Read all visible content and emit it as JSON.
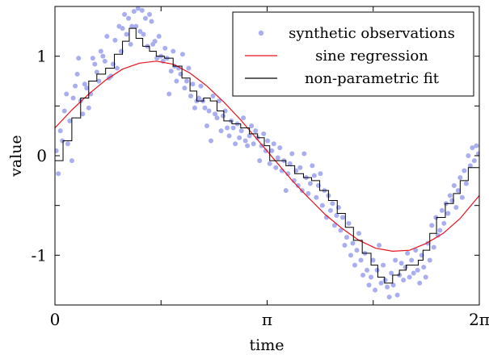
{
  "chart_data": {
    "type": "scatter",
    "xlabel": "time",
    "ylabel": "value",
    "xlim": [
      0,
      6.2832
    ],
    "ylim": [
      -1.5,
      1.5
    ],
    "x_ticks": [
      {
        "value": 0,
        "label": "0"
      },
      {
        "value": 3.1416,
        "label": "π"
      },
      {
        "value": 6.2832,
        "label": "2π"
      }
    ],
    "x_minor_ticks": [
      1.5708,
      4.7124
    ],
    "y_ticks": [
      {
        "value": -1,
        "label": "-1"
      },
      {
        "value": 0,
        "label": "0"
      },
      {
        "value": 1,
        "label": "1"
      }
    ],
    "y_minor_ticks": [
      -0.5,
      0.5
    ],
    "grid": false,
    "legend_position": "top-right",
    "colors": {
      "observations": "#a8aef0",
      "sine": "#e8111b",
      "fit": "#000000"
    },
    "series": [
      {
        "name": "synthetic observations",
        "kind": "scatter",
        "points": [
          [
            0.02,
            0.05
          ],
          [
            0.05,
            -0.18
          ],
          [
            0.08,
            0.25
          ],
          [
            0.11,
            0.15
          ],
          [
            0.14,
            0.45
          ],
          [
            0.17,
            0.62
          ],
          [
            0.19,
            0.12
          ],
          [
            0.22,
            0.35
          ],
          [
            0.25,
            -0.05
          ],
          [
            0.27,
            0.58
          ],
          [
            0.3,
            0.7
          ],
          [
            0.33,
            0.82
          ],
          [
            0.35,
            0.98
          ],
          [
            0.38,
            0.55
          ],
          [
            0.41,
            0.42
          ],
          [
            0.44,
            0.72
          ],
          [
            0.47,
            0.68
          ],
          [
            0.5,
            0.48
          ],
          [
            0.53,
            0.62
          ],
          [
            0.56,
            0.98
          ],
          [
            0.59,
            0.92
          ],
          [
            0.62,
            0.84
          ],
          [
            0.65,
            0.75
          ],
          [
            0.68,
            1.05
          ],
          [
            0.71,
            1.0
          ],
          [
            0.74,
            0.95
          ],
          [
            0.77,
            1.2
          ],
          [
            0.8,
            0.78
          ],
          [
            0.83,
            0.8
          ],
          [
            0.86,
            0.92
          ],
          [
            0.89,
            1.16
          ],
          [
            0.92,
            0.88
          ],
          [
            0.95,
            1.3
          ],
          [
            0.98,
            1.05
          ],
          [
            1.0,
            1.28
          ],
          [
            1.03,
            1.42
          ],
          [
            1.06,
            1.22
          ],
          [
            1.09,
            1.38
          ],
          [
            1.12,
            1.12
          ],
          [
            1.14,
            1.3
          ],
          [
            1.17,
            1.45
          ],
          [
            1.2,
            1.3
          ],
          [
            1.23,
            1.48
          ],
          [
            1.26,
            1.25
          ],
          [
            1.29,
            1.46
          ],
          [
            1.31,
            1.22
          ],
          [
            1.34,
            1.38
          ],
          [
            1.37,
            1.1
          ],
          [
            1.4,
            1.42
          ],
          [
            1.43,
            1.35
          ],
          [
            1.45,
            1.12
          ],
          [
            1.48,
            1.15
          ],
          [
            1.51,
            0.98
          ],
          [
            1.54,
            1.2
          ],
          [
            1.57,
            1.0
          ],
          [
            1.6,
            0.95
          ],
          [
            1.63,
            1.08
          ],
          [
            1.66,
            0.98
          ],
          [
            1.69,
            0.62
          ],
          [
            1.72,
            0.85
          ],
          [
            1.75,
            1.05
          ],
          [
            1.77,
            0.9
          ],
          [
            1.8,
            0.75
          ],
          [
            1.83,
            0.88
          ],
          [
            1.86,
            0.82
          ],
          [
            1.89,
            1.02
          ],
          [
            1.92,
            0.68
          ],
          [
            1.95,
            0.75
          ],
          [
            1.98,
            0.88
          ],
          [
            2.01,
            0.6
          ],
          [
            2.04,
            0.72
          ],
          [
            2.07,
            0.48
          ],
          [
            2.1,
            0.55
          ],
          [
            2.13,
            0.58
          ],
          [
            2.16,
            0.7
          ],
          [
            2.19,
            0.55
          ],
          [
            2.22,
            0.48
          ],
          [
            2.25,
            0.3
          ],
          [
            2.28,
            0.45
          ],
          [
            2.31,
            0.15
          ],
          [
            2.34,
            0.6
          ],
          [
            2.37,
            0.42
          ],
          [
            2.4,
            0.38
          ],
          [
            2.43,
            0.55
          ],
          [
            2.46,
            0.25
          ],
          [
            2.49,
            0.4
          ],
          [
            2.52,
            0.45
          ],
          [
            2.55,
            0.28
          ],
          [
            2.58,
            0.2
          ],
          [
            2.61,
            0.35
          ],
          [
            2.64,
            0.28
          ],
          [
            2.67,
            0.12
          ],
          [
            2.7,
            0.32
          ],
          [
            2.73,
            0.18
          ],
          [
            2.76,
            0.25
          ],
          [
            2.79,
            0.38
          ],
          [
            2.82,
            0.15
          ],
          [
            2.85,
            0.1
          ],
          [
            2.88,
            0.2
          ],
          [
            2.91,
            0.3
          ],
          [
            2.94,
            0.12
          ],
          [
            2.97,
            0.25
          ],
          [
            3.0,
            0.18
          ],
          [
            3.03,
            -0.05
          ],
          [
            3.06,
            0.1
          ],
          [
            3.09,
            0.22
          ],
          [
            3.12,
            0.05
          ],
          [
            3.15,
            0.15
          ],
          [
            3.18,
            -0.08
          ],
          [
            3.21,
            0.05
          ],
          [
            3.24,
            0.12
          ],
          [
            3.27,
            -0.12
          ],
          [
            3.3,
            -0.02
          ],
          [
            3.33,
            0.08
          ],
          [
            3.36,
            -0.15
          ],
          [
            3.39,
            -0.05
          ],
          [
            3.42,
            -0.35
          ],
          [
            3.45,
            -0.18
          ],
          [
            3.48,
            -0.08
          ],
          [
            3.51,
            0.02
          ],
          [
            3.54,
            -0.25
          ],
          [
            3.57,
            -0.15
          ],
          [
            3.6,
            -0.3
          ],
          [
            3.63,
            -0.12
          ],
          [
            3.66,
            -0.35
          ],
          [
            3.69,
            0.02
          ],
          [
            3.72,
            -0.22
          ],
          [
            3.75,
            -0.38
          ],
          [
            3.78,
            -0.28
          ],
          [
            3.81,
            -0.1
          ],
          [
            3.84,
            -0.2
          ],
          [
            3.87,
            -0.42
          ],
          [
            3.9,
            -0.3
          ],
          [
            3.93,
            -0.18
          ],
          [
            3.96,
            -0.5
          ],
          [
            3.99,
            -0.35
          ],
          [
            4.02,
            -0.62
          ],
          [
            4.05,
            -0.4
          ],
          [
            4.08,
            -0.55
          ],
          [
            4.11,
            -0.48
          ],
          [
            4.14,
            -0.7
          ],
          [
            4.17,
            -0.6
          ],
          [
            4.2,
            -0.52
          ],
          [
            4.23,
            -0.75
          ],
          [
            4.26,
            -0.62
          ],
          [
            4.29,
            -0.9
          ],
          [
            4.32,
            -0.82
          ],
          [
            4.35,
            -0.68
          ],
          [
            4.38,
            -1.0
          ],
          [
            4.41,
            -0.88
          ],
          [
            4.44,
            -1.1
          ],
          [
            4.47,
            -0.95
          ],
          [
            4.5,
            -0.78
          ],
          [
            4.53,
            -1.05
          ],
          [
            4.56,
            -1.2
          ],
          [
            4.59,
            -0.98
          ],
          [
            4.62,
            -1.15
          ],
          [
            4.65,
            -1.3
          ],
          [
            4.68,
            -1.22
          ],
          [
            4.71,
            -1.05
          ],
          [
            4.74,
            -1.35
          ],
          [
            4.77,
            -1.15
          ],
          [
            4.8,
            -0.9
          ],
          [
            4.83,
            -1.28
          ],
          [
            4.86,
            -1.1
          ],
          [
            4.89,
            -1.25
          ],
          [
            4.92,
            -1.32
          ],
          [
            4.95,
            -1.42
          ],
          [
            4.98,
            -1.18
          ],
          [
            5.01,
            -1.3
          ],
          [
            5.04,
            -1.05
          ],
          [
            5.07,
            -1.4
          ],
          [
            5.1,
            -1.2
          ],
          [
            5.13,
            -1.08
          ],
          [
            5.16,
            -1.25
          ],
          [
            5.19,
            -1.12
          ],
          [
            5.22,
            -0.98
          ],
          [
            5.25,
            -1.22
          ],
          [
            5.28,
            -1.05
          ],
          [
            5.31,
            -1.18
          ],
          [
            5.34,
            -0.95
          ],
          [
            5.37,
            -1.15
          ],
          [
            5.4,
            -1.28
          ],
          [
            5.43,
            -1.0
          ],
          [
            5.46,
            -1.12
          ],
          [
            5.49,
            -1.22
          ],
          [
            5.52,
            -0.88
          ],
          [
            5.55,
            -1.05
          ],
          [
            5.58,
            -0.7
          ],
          [
            5.61,
            -0.92
          ],
          [
            5.64,
            -0.62
          ],
          [
            5.67,
            -0.8
          ],
          [
            5.7,
            -0.75
          ],
          [
            5.73,
            -0.55
          ],
          [
            5.76,
            -0.68
          ],
          [
            5.79,
            -0.48
          ],
          [
            5.82,
            -0.58
          ],
          [
            5.85,
            -0.4
          ],
          [
            5.88,
            -0.45
          ],
          [
            5.91,
            -0.3
          ],
          [
            5.94,
            -0.52
          ],
          [
            5.97,
            -0.35
          ],
          [
            6.0,
            -0.22
          ],
          [
            6.03,
            -0.42
          ],
          [
            6.06,
            -0.15
          ],
          [
            6.09,
            -0.28
          ],
          [
            6.12,
            0.0
          ],
          [
            6.15,
            -0.1
          ],
          [
            6.18,
            0.08
          ],
          [
            6.21,
            -0.05
          ],
          [
            6.24,
            0.1
          ],
          [
            6.27,
            0.02
          ]
        ]
      },
      {
        "name": "sine regression",
        "kind": "line",
        "points": [
          [
            0.0,
            0.28
          ],
          [
            0.25,
            0.46
          ],
          [
            0.5,
            0.62
          ],
          [
            0.75,
            0.76
          ],
          [
            1.0,
            0.87
          ],
          [
            1.25,
            0.93
          ],
          [
            1.5,
            0.95
          ],
          [
            1.75,
            0.92
          ],
          [
            2.0,
            0.83
          ],
          [
            2.25,
            0.7
          ],
          [
            2.5,
            0.54
          ],
          [
            2.75,
            0.36
          ],
          [
            3.0,
            0.16
          ],
          [
            3.25,
            -0.04
          ],
          [
            3.5,
            -0.24
          ],
          [
            3.75,
            -0.42
          ],
          [
            4.0,
            -0.59
          ],
          [
            4.25,
            -0.73
          ],
          [
            4.5,
            -0.85
          ],
          [
            4.75,
            -0.93
          ],
          [
            5.0,
            -0.96
          ],
          [
            5.25,
            -0.95
          ],
          [
            5.5,
            -0.88
          ],
          [
            5.75,
            -0.78
          ],
          [
            6.0,
            -0.63
          ],
          [
            6.2832,
            -0.4
          ]
        ]
      },
      {
        "name": "non-parametric fit",
        "kind": "step",
        "points": [
          [
            0.0,
            -0.05
          ],
          [
            0.12,
            0.15
          ],
          [
            0.25,
            0.38
          ],
          [
            0.38,
            0.58
          ],
          [
            0.5,
            0.75
          ],
          [
            0.62,
            0.82
          ],
          [
            0.75,
            0.88
          ],
          [
            0.88,
            1.02
          ],
          [
            1.0,
            1.15
          ],
          [
            1.1,
            1.28
          ],
          [
            1.2,
            1.18
          ],
          [
            1.3,
            1.1
          ],
          [
            1.4,
            1.05
          ],
          [
            1.5,
            1.0
          ],
          [
            1.62,
            0.98
          ],
          [
            1.75,
            0.9
          ],
          [
            1.88,
            0.78
          ],
          [
            2.0,
            0.65
          ],
          [
            2.1,
            0.55
          ],
          [
            2.2,
            0.58
          ],
          [
            2.3,
            0.55
          ],
          [
            2.4,
            0.45
          ],
          [
            2.5,
            0.35
          ],
          [
            2.62,
            0.32
          ],
          [
            2.75,
            0.28
          ],
          [
            2.88,
            0.22
          ],
          [
            3.0,
            0.18
          ],
          [
            3.1,
            0.1
          ],
          [
            3.18,
            -0.05
          ],
          [
            3.3,
            -0.05
          ],
          [
            3.42,
            -0.1
          ],
          [
            3.55,
            -0.18
          ],
          [
            3.68,
            -0.22
          ],
          [
            3.8,
            -0.25
          ],
          [
            3.92,
            -0.35
          ],
          [
            4.05,
            -0.45
          ],
          [
            4.18,
            -0.58
          ],
          [
            4.3,
            -0.72
          ],
          [
            4.42,
            -0.85
          ],
          [
            4.55,
            -0.98
          ],
          [
            4.68,
            -1.1
          ],
          [
            4.78,
            -1.22
          ],
          [
            4.88,
            -1.28
          ],
          [
            5.0,
            -1.2
          ],
          [
            5.1,
            -1.15
          ],
          [
            5.2,
            -1.1
          ],
          [
            5.3,
            -1.1
          ],
          [
            5.38,
            -1.05
          ],
          [
            5.45,
            -0.95
          ],
          [
            5.55,
            -0.78
          ],
          [
            5.65,
            -0.62
          ],
          [
            5.78,
            -0.48
          ],
          [
            5.9,
            -0.38
          ],
          [
            6.0,
            -0.25
          ],
          [
            6.12,
            -0.12
          ],
          [
            6.2832,
            0.02
          ]
        ]
      }
    ]
  }
}
